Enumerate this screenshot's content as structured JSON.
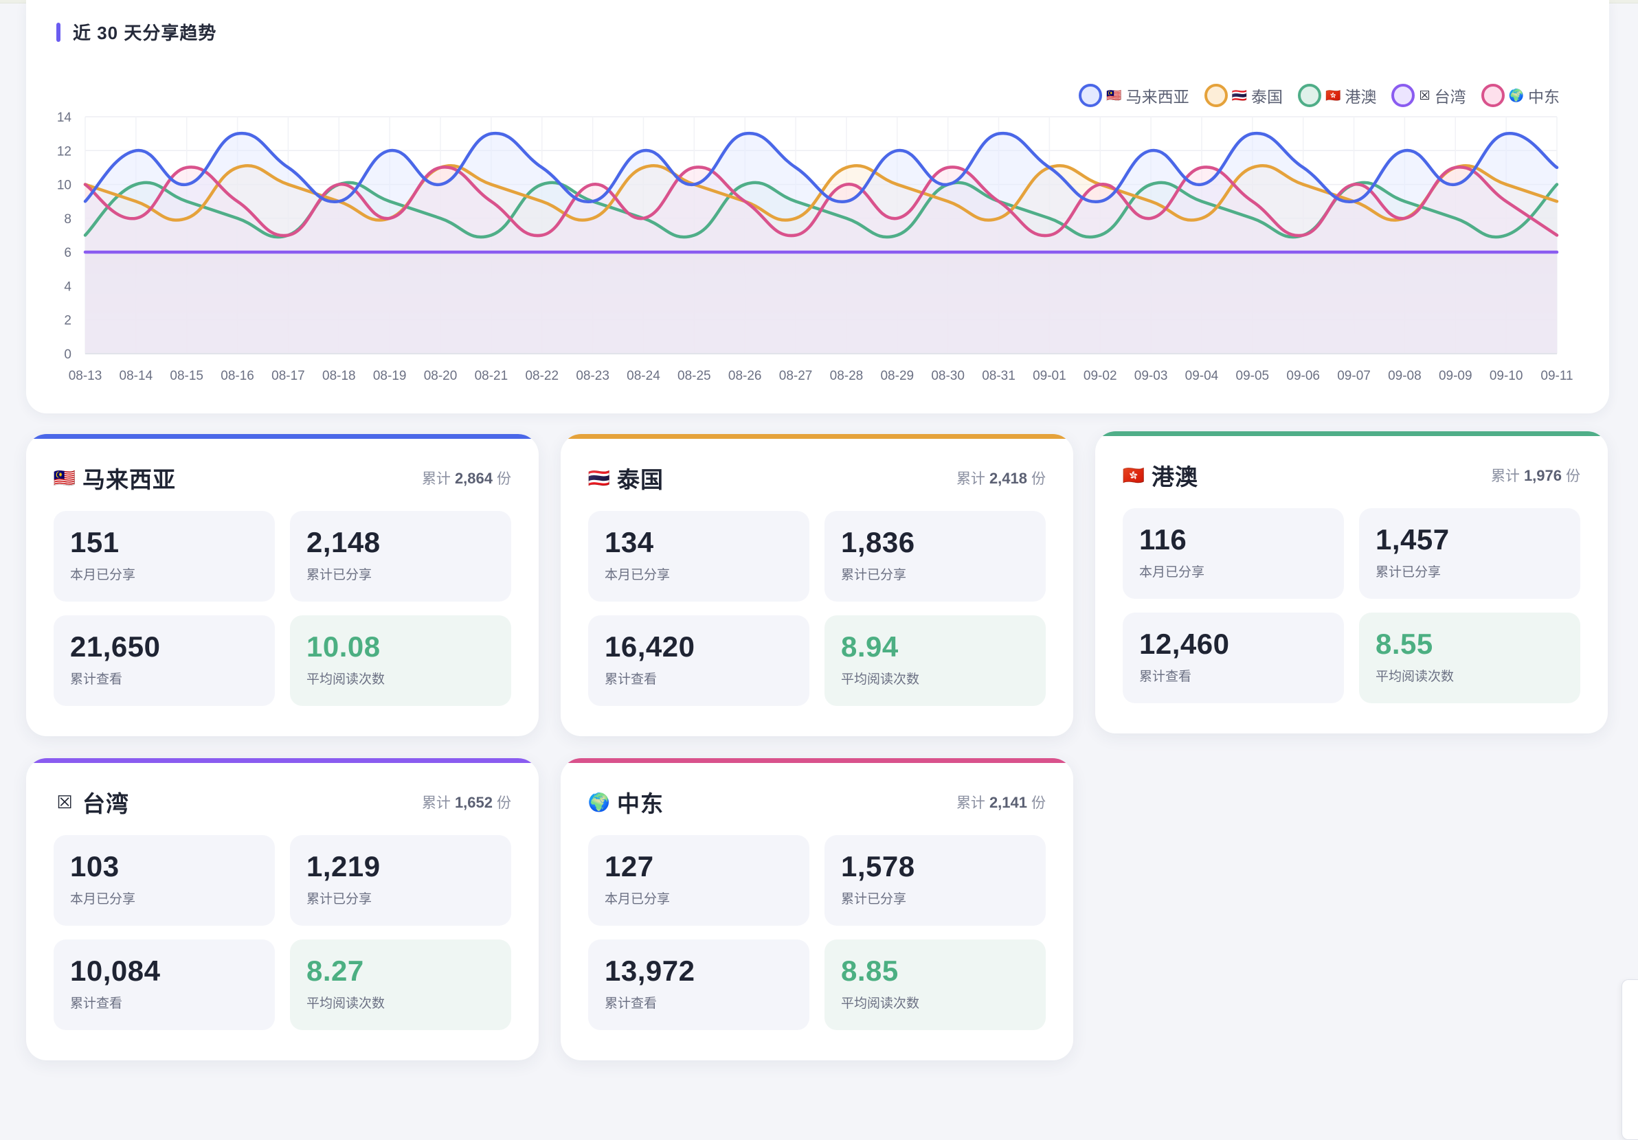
{
  "trend": {
    "title": "近 30 天分享趋势",
    "legend": [
      {
        "flag": "🇲🇾",
        "label": "马来西亚",
        "color": "#4a67e8",
        "fill": "#e3e9ff"
      },
      {
        "flag": "🇹🇭",
        "label": "泰国",
        "color": "#e5a23b",
        "fill": "#fdeed8"
      },
      {
        "flag": "🇭🇰",
        "label": "港澳",
        "color": "#4fae88",
        "fill": "#dff1ea"
      },
      {
        "flag": "☒",
        "label": "台湾",
        "color": "#8a5cf0",
        "fill": "#ece5ff"
      },
      {
        "flag": "🌍",
        "label": "中东",
        "color": "#d9528c",
        "fill": "#fde0ec"
      }
    ]
  },
  "chart_data": {
    "type": "area",
    "title": "近 30 天分享趋势",
    "xlabel": "",
    "ylabel": "",
    "ylim": [
      0,
      14
    ],
    "yticks": [
      0,
      2,
      4,
      6,
      8,
      10,
      12,
      14
    ],
    "grid": true,
    "legend_position": "top-right",
    "x": [
      "08-13",
      "08-14",
      "08-15",
      "08-16",
      "08-17",
      "08-18",
      "08-19",
      "08-20",
      "08-21",
      "08-22",
      "08-23",
      "08-24",
      "08-25",
      "08-26",
      "08-27",
      "08-28",
      "08-29",
      "08-30",
      "08-31",
      "09-01",
      "09-02",
      "09-03",
      "09-04",
      "09-05",
      "09-06",
      "09-07",
      "09-08",
      "09-09",
      "09-10",
      "09-11"
    ],
    "series": [
      {
        "name": "马来西亚",
        "color": "#4a67e8",
        "values": [
          9,
          12,
          10,
          13,
          11,
          9,
          12,
          10,
          13,
          11,
          9,
          12,
          10,
          13,
          11,
          9,
          12,
          10,
          13,
          11,
          9,
          12,
          10,
          13,
          11,
          9,
          12,
          10,
          13,
          11
        ]
      },
      {
        "name": "泰国",
        "color": "#e5a23b",
        "values": [
          10,
          9,
          8,
          11,
          10,
          9,
          8,
          11,
          10,
          9,
          8,
          11,
          10,
          9,
          8,
          11,
          10,
          9,
          8,
          11,
          10,
          9,
          8,
          11,
          10,
          9,
          8,
          11,
          10,
          9
        ]
      },
      {
        "name": "港澳",
        "color": "#4fae88",
        "values": [
          7,
          10,
          9,
          8,
          7,
          10,
          9,
          8,
          7,
          10,
          9,
          8,
          7,
          10,
          9,
          8,
          7,
          10,
          9,
          8,
          7,
          10,
          9,
          8,
          7,
          10,
          9,
          8,
          7,
          10
        ]
      },
      {
        "name": "台湾",
        "color": "#8a5cf0",
        "values": [
          6,
          6,
          6,
          6,
          6,
          6,
          6,
          6,
          6,
          6,
          6,
          6,
          6,
          6,
          6,
          6,
          6,
          6,
          6,
          6,
          6,
          6,
          6,
          6,
          6,
          6,
          6,
          6,
          6,
          6
        ]
      },
      {
        "name": "中东",
        "color": "#d9528c",
        "values": [
          10,
          8,
          11,
          9,
          7,
          10,
          8,
          11,
          9,
          7,
          10,
          8,
          11,
          9,
          7,
          10,
          8,
          11,
          9,
          7,
          10,
          8,
          11,
          9,
          7,
          10,
          8,
          11,
          9,
          7
        ]
      }
    ]
  },
  "regions": [
    {
      "flag": "🇲🇾",
      "name": "马来西亚",
      "accent": "#4a67e8",
      "total_prefix": "累计",
      "total": "2,864",
      "total_suffix": "份",
      "stats": {
        "month_shared": "151",
        "total_shared": "2,148",
        "total_views": "21,650",
        "avg_reads": "10.08"
      }
    },
    {
      "flag": "🇹🇭",
      "name": "泰国",
      "accent": "#e5a23b",
      "total_prefix": "累计",
      "total": "2,418",
      "total_suffix": "份",
      "stats": {
        "month_shared": "134",
        "total_shared": "1,836",
        "total_views": "16,420",
        "avg_reads": "8.94"
      }
    },
    {
      "flag": "🇭🇰",
      "name": "港澳",
      "accent": "#4fae88",
      "total_prefix": "累计",
      "total": "1,976",
      "total_suffix": "份",
      "stats": {
        "month_shared": "116",
        "total_shared": "1,457",
        "total_views": "12,460",
        "avg_reads": "8.55"
      }
    },
    {
      "flag": "☒",
      "name": "台湾",
      "accent": "#8a5cf0",
      "total_prefix": "累计",
      "total": "1,652",
      "total_suffix": "份",
      "stats": {
        "month_shared": "103",
        "total_shared": "1,219",
        "total_views": "10,084",
        "avg_reads": "8.27"
      }
    },
    {
      "flag": "🌍",
      "name": "中东",
      "accent": "#d9528c",
      "total_prefix": "累计",
      "total": "2,141",
      "total_suffix": "份",
      "stats": {
        "month_shared": "127",
        "total_shared": "1,578",
        "total_views": "13,972",
        "avg_reads": "8.85"
      }
    }
  ],
  "labels": {
    "month_shared": "本月已分享",
    "total_shared": "累计已分享",
    "total_views": "累计查看",
    "avg_reads": "平均阅读次数"
  }
}
